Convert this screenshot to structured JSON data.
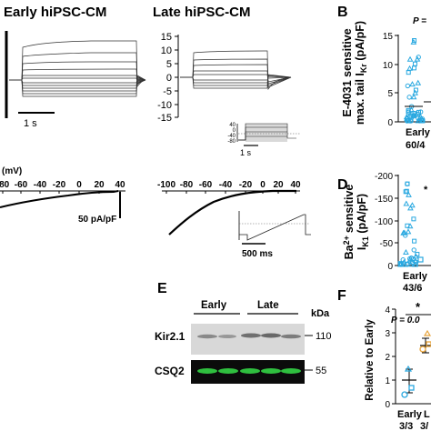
{
  "titles": {
    "early": "Early hiPSC-CM",
    "late": "Late hiPSC-CM"
  },
  "panel_labels": {
    "B": "B",
    "D": "D",
    "E": "E",
    "F": "F"
  },
  "scale_bars": {
    "time_1s_left": "1 s",
    "time_1s_inset": "1 s",
    "current_50": "50 pA/pF",
    "time_500ms": "500 ms"
  },
  "late_current_trace": {
    "y_ticks": [
      "15",
      "10",
      "5",
      "0",
      "-5",
      "-10",
      "-15"
    ]
  },
  "protocol_inset_A": {
    "y_ticks": [
      "40",
      "0",
      "-40",
      "-80"
    ]
  },
  "iv_left": {
    "axis_label": "(mV)",
    "x_ticks": [
      "-80",
      "-60",
      "-40",
      "-20",
      "0",
      "20",
      "40"
    ]
  },
  "iv_right": {
    "x_ticks": [
      "-100",
      "-80",
      "-60",
      "-40",
      "-20",
      "0",
      "20",
      "40"
    ]
  },
  "panel_B": {
    "ylabel_line1": "E-4031 sensitive",
    "ylabel_line2": "max. tail I",
    "ylabel_sub": "Kr",
    "ylabel_unit": " (pA/pF)",
    "y_ticks": [
      "15",
      "10",
      "5",
      "0"
    ],
    "group_label": "Early",
    "n_label": "60/4",
    "p_fragment": "P ="
  },
  "panel_D": {
    "ylabel_line1": "sensitive",
    "ylabel_ba": "Ba",
    "ylabel_sup": "2+",
    "ylabel_i": "I",
    "ylabel_sub": "K1",
    "ylabel_unit": " (pA/pF)",
    "y_ticks": [
      "-200",
      "-150",
      "-100",
      "-50",
      "0"
    ],
    "group_label": "Early",
    "n_label": "43/6",
    "star": "*"
  },
  "panel_E": {
    "col_early": "Early",
    "col_late": "Late",
    "unit": "kDa",
    "rows": [
      {
        "name": "Kir2.1",
        "kda": "110"
      },
      {
        "name": "CSQ2",
        "kda": "55"
      }
    ]
  },
  "panel_F": {
    "ylabel": "Relative to Early",
    "y_ticks": [
      "4",
      "3",
      "2",
      "1",
      "0"
    ],
    "star": "*",
    "p_text": "P = 0.0",
    "group_early": "Early",
    "group_late": "L",
    "n_early": "3/3",
    "n_late": "3/"
  },
  "colors": {
    "early_points": "#29a8e0",
    "late_points": "#e8a33a",
    "csq2_band": "#2fbf3f"
  }
}
